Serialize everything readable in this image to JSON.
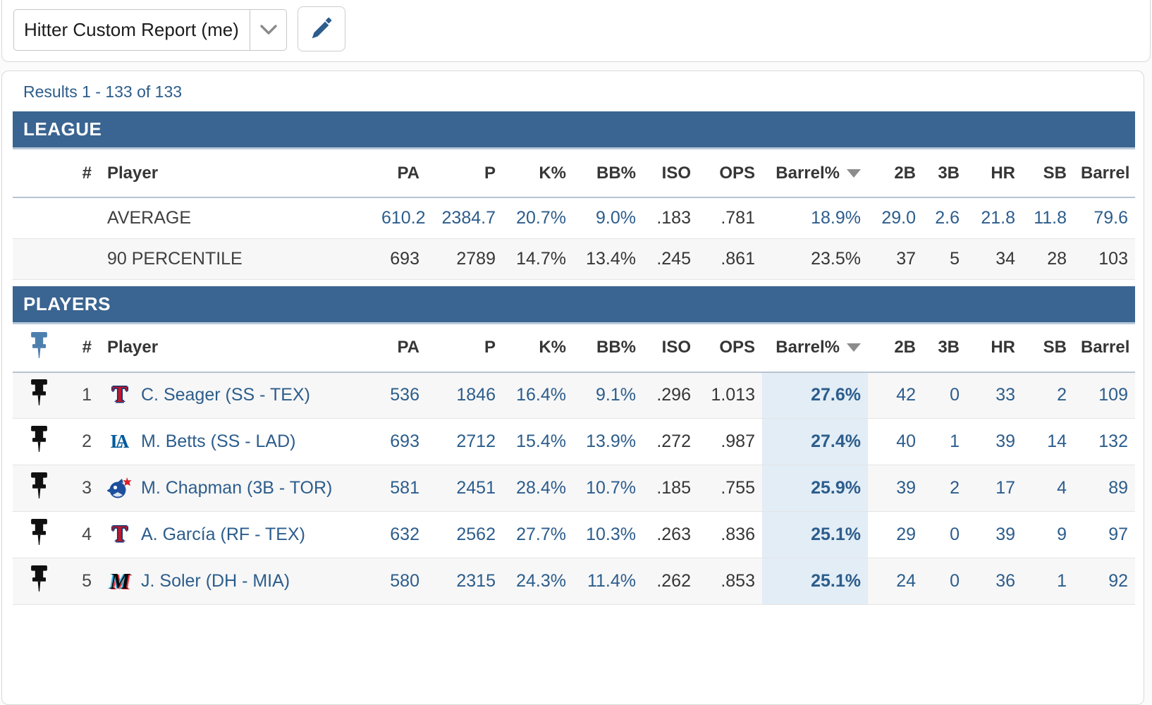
{
  "toolbar": {
    "report_name": "Hitter Custom Report (me)",
    "caret_icon": "chevron-down-icon",
    "edit_icon": "pencil-icon"
  },
  "results": {
    "summary": "Results 1 - 133 of 133"
  },
  "columns": [
    "#",
    "Player",
    "PA",
    "P",
    "K%",
    "BB%",
    "ISO",
    "OPS",
    "Barrel%",
    "2B",
    "3B",
    "HR",
    "SB",
    "Barrel"
  ],
  "sort": {
    "column": "Barrel%",
    "icon": "sort-desc-triangle"
  },
  "colors": {
    "section_bar": "#3a6491",
    "section_bar_underline": "#b9c9dc",
    "link_blue": "#2c5d8c",
    "barrel_highlight": "#e2edf6",
    "stripe": "#f7f7f7"
  },
  "league": {
    "title": "LEAGUE",
    "rows": [
      {
        "label": "AVERAGE",
        "value_color": "blue",
        "values": [
          "610.2",
          "2384.7",
          "20.7%",
          "9.0%",
          ".183",
          ".781",
          "18.9%",
          "29.0",
          "2.6",
          "21.8",
          "11.8",
          "79.6"
        ]
      },
      {
        "label": "90 PERCENTILE",
        "value_color": "dark",
        "values": [
          "693",
          "2789",
          "14.7%",
          "13.4%",
          ".245",
          ".861",
          "23.5%",
          "37",
          "5",
          "34",
          "28",
          "103"
        ]
      }
    ]
  },
  "players": {
    "title": "PLAYERS",
    "rows": [
      {
        "rank": "1",
        "team": "TEX",
        "name": "C. Seager (SS - TEX)",
        "values": [
          "536",
          "1846",
          "16.4%",
          "9.1%",
          ".296",
          "1.013",
          "27.6%",
          "42",
          "0",
          "33",
          "2",
          "109"
        ]
      },
      {
        "rank": "2",
        "team": "LAD",
        "name": "M. Betts (SS - LAD)",
        "values": [
          "693",
          "2712",
          "15.4%",
          "13.9%",
          ".272",
          ".987",
          "27.4%",
          "40",
          "1",
          "39",
          "14",
          "132"
        ]
      },
      {
        "rank": "3",
        "team": "TOR",
        "name": "M. Chapman (3B - TOR)",
        "values": [
          "581",
          "2451",
          "28.4%",
          "10.7%",
          ".185",
          ".755",
          "25.9%",
          "39",
          "2",
          "17",
          "4",
          "89"
        ]
      },
      {
        "rank": "4",
        "team": "TEX",
        "name": "A. García (RF - TEX)",
        "values": [
          "632",
          "2562",
          "27.7%",
          "10.3%",
          ".263",
          ".836",
          "25.1%",
          "29",
          "0",
          "39",
          "9",
          "97"
        ]
      },
      {
        "rank": "5",
        "team": "MIA",
        "name": "J. Soler (DH - MIA)",
        "values": [
          "580",
          "2315",
          "24.3%",
          "11.4%",
          ".262",
          ".853",
          "25.1%",
          "24",
          "0",
          "36",
          "1",
          "92"
        ]
      }
    ]
  }
}
